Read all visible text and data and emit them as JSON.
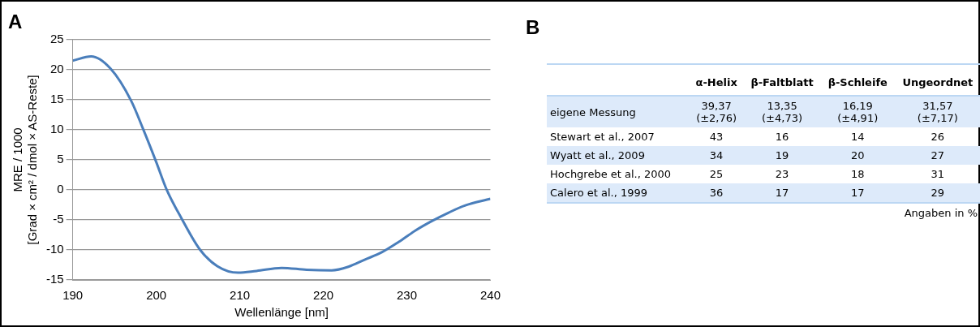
{
  "chart_data": [
    {
      "type": "line",
      "title": "A",
      "xlabel": "Wellenlänge [nm]",
      "ylabel": "MRE / 1000\n[Grad × cm² / dmol × AS-Reste]",
      "series": [
        {
          "color": "#4a7ebb",
          "x": [
            190,
            192.2,
            194.5,
            197,
            198.4,
            200,
            201.25,
            203,
            205.2,
            207.3,
            209.8,
            212,
            215,
            218,
            221,
            223,
            225,
            227,
            229,
            231,
            233,
            235,
            237,
            240
          ],
          "values": [
            21.5,
            22.2,
            20.2,
            14.8,
            10.2,
            4.6,
            0,
            -4.7,
            -9.9,
            -12.7,
            -13.8,
            -13.5,
            -13.0,
            -13.3,
            -13.4,
            -12.8,
            -11.6,
            -10.4,
            -8.7,
            -6.8,
            -5.2,
            -3.8,
            -2.6,
            -1.5
          ]
        }
      ],
      "xlim": [
        190,
        240
      ],
      "xticks": [
        190,
        200,
        210,
        220,
        230,
        240
      ],
      "ylim": [
        -15,
        25
      ],
      "yticks": [
        -15,
        -10,
        -5,
        0,
        5,
        10,
        15,
        20,
        25
      ],
      "grid": "y",
      "legend": false,
      "marker": "none",
      "line_style": "solid"
    },
    {
      "type": "other",
      "title": "B",
      "categories": [
        "α-Helix",
        "β-Faltblatt",
        "β-Schleife",
        "Ungeordnet"
      ],
      "y_categories": [
        "eigene Messung",
        "Stewart et al., 2007",
        "Wyatt et al., 2009",
        "Hochgrebe et al., 2000",
        "Calero et al., 1999"
      ],
      "cell_labels": [
        [
          "39,37\n(±2,76)",
          "13,35\n(±4,73)",
          "16,19\n(±4,91)",
          "31,57\n(±7,17)"
        ],
        [
          "43",
          "16",
          "14",
          "26"
        ],
        [
          "34",
          "19",
          "20",
          "27"
        ],
        [
          "25",
          "23",
          "18",
          "31"
        ],
        [
          "36",
          "17",
          "17",
          "29"
        ]
      ],
      "annotations": [
        "Angaben in %"
      ]
    }
  ]
}
